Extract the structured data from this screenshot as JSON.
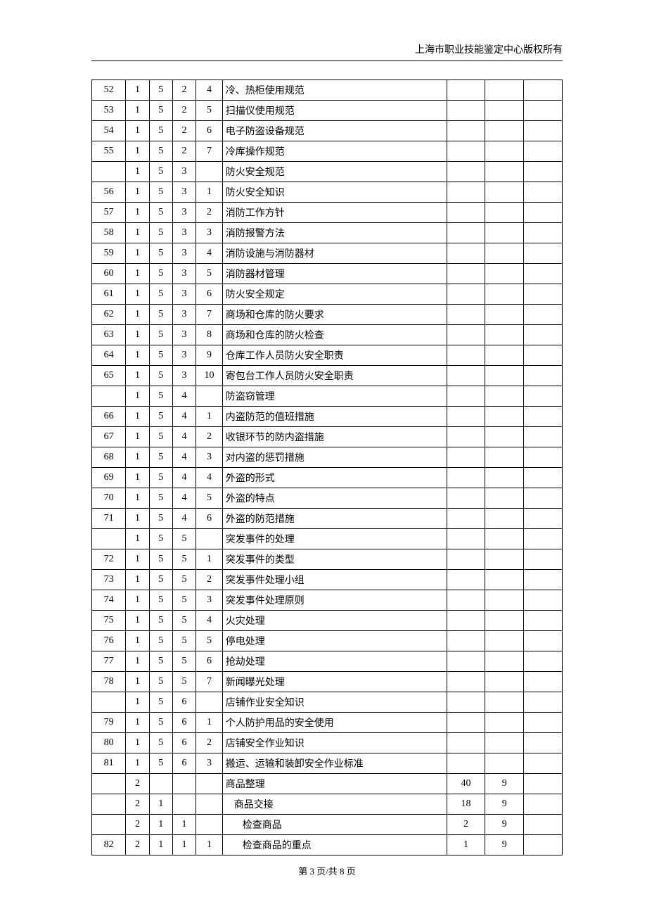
{
  "header": {
    "copyright": "上海市职业技能鉴定中心版权所有"
  },
  "footer": {
    "pager": "第 3 页/共 8 页"
  },
  "table": {
    "rows": [
      {
        "c0": "52",
        "c1": "1",
        "c2": "5",
        "c3": "2",
        "c4": "4",
        "c5": "冷、热柜使用规范",
        "c6": "",
        "c7": "",
        "c8": "",
        "indent": 0
      },
      {
        "c0": "53",
        "c1": "1",
        "c2": "5",
        "c3": "2",
        "c4": "5",
        "c5": "扫描仪使用规范",
        "c6": "",
        "c7": "",
        "c8": "",
        "indent": 0
      },
      {
        "c0": "54",
        "c1": "1",
        "c2": "5",
        "c3": "2",
        "c4": "6",
        "c5": "电子防盗设备规范",
        "c6": "",
        "c7": "",
        "c8": "",
        "indent": 0
      },
      {
        "c0": "55",
        "c1": "1",
        "c2": "5",
        "c3": "2",
        "c4": "7",
        "c5": "冷库操作规范",
        "c6": "",
        "c7": "",
        "c8": "",
        "indent": 0
      },
      {
        "c0": "",
        "c1": "1",
        "c2": "5",
        "c3": "3",
        "c4": "",
        "c5": "防火安全规范",
        "c6": "",
        "c7": "",
        "c8": "",
        "indent": 0
      },
      {
        "c0": "56",
        "c1": "1",
        "c2": "5",
        "c3": "3",
        "c4": "1",
        "c5": "防火安全知识",
        "c6": "",
        "c7": "",
        "c8": "",
        "indent": 0
      },
      {
        "c0": "57",
        "c1": "1",
        "c2": "5",
        "c3": "3",
        "c4": "2",
        "c5": "消防工作方针",
        "c6": "",
        "c7": "",
        "c8": "",
        "indent": 0
      },
      {
        "c0": "58",
        "c1": "1",
        "c2": "5",
        "c3": "3",
        "c4": "3",
        "c5": "消防报警方法",
        "c6": "",
        "c7": "",
        "c8": "",
        "indent": 0
      },
      {
        "c0": "59",
        "c1": "1",
        "c2": "5",
        "c3": "3",
        "c4": "4",
        "c5": "消防设施与消防器材",
        "c6": "",
        "c7": "",
        "c8": "",
        "indent": 0
      },
      {
        "c0": "60",
        "c1": "1",
        "c2": "5",
        "c3": "3",
        "c4": "5",
        "c5": "消防器材管理",
        "c6": "",
        "c7": "",
        "c8": "",
        "indent": 0
      },
      {
        "c0": "61",
        "c1": "1",
        "c2": "5",
        "c3": "3",
        "c4": "6",
        "c5": "防火安全规定",
        "c6": "",
        "c7": "",
        "c8": "",
        "indent": 0
      },
      {
        "c0": "62",
        "c1": "1",
        "c2": "5",
        "c3": "3",
        "c4": "7",
        "c5": "商场和仓库的防火要求",
        "c6": "",
        "c7": "",
        "c8": "",
        "indent": 0
      },
      {
        "c0": "63",
        "c1": "1",
        "c2": "5",
        "c3": "3",
        "c4": "8",
        "c5": "商场和仓库的防火检查",
        "c6": "",
        "c7": "",
        "c8": "",
        "indent": 0
      },
      {
        "c0": "64",
        "c1": "1",
        "c2": "5",
        "c3": "3",
        "c4": "9",
        "c5": "仓库工作人员防火安全职责",
        "c6": "",
        "c7": "",
        "c8": "",
        "indent": 0
      },
      {
        "c0": "65",
        "c1": "1",
        "c2": "5",
        "c3": "3",
        "c4": "10",
        "c5": "寄包台工作人员防火安全职责",
        "c6": "",
        "c7": "",
        "c8": "",
        "indent": 0
      },
      {
        "c0": "",
        "c1": "1",
        "c2": "5",
        "c3": "4",
        "c4": "",
        "c5": "防盗窃管理",
        "c6": "",
        "c7": "",
        "c8": "",
        "indent": 0
      },
      {
        "c0": "66",
        "c1": "1",
        "c2": "5",
        "c3": "4",
        "c4": "1",
        "c5": "内盗防范的值班措施",
        "c6": "",
        "c7": "",
        "c8": "",
        "indent": 0
      },
      {
        "c0": "67",
        "c1": "1",
        "c2": "5",
        "c3": "4",
        "c4": "2",
        "c5": "收银环节的防内盗措施",
        "c6": "",
        "c7": "",
        "c8": "",
        "indent": 0
      },
      {
        "c0": "68",
        "c1": "1",
        "c2": "5",
        "c3": "4",
        "c4": "3",
        "c5": "对内盗的惩罚措施",
        "c6": "",
        "c7": "",
        "c8": "",
        "indent": 0
      },
      {
        "c0": "69",
        "c1": "1",
        "c2": "5",
        "c3": "4",
        "c4": "4",
        "c5": "外盗的形式",
        "c6": "",
        "c7": "",
        "c8": "",
        "indent": 0
      },
      {
        "c0": "70",
        "c1": "1",
        "c2": "5",
        "c3": "4",
        "c4": "5",
        "c5": "外盗的特点",
        "c6": "",
        "c7": "",
        "c8": "",
        "indent": 0
      },
      {
        "c0": "71",
        "c1": "1",
        "c2": "5",
        "c3": "4",
        "c4": "6",
        "c5": "外盗的防范措施",
        "c6": "",
        "c7": "",
        "c8": "",
        "indent": 0
      },
      {
        "c0": "",
        "c1": "1",
        "c2": "5",
        "c3": "5",
        "c4": "",
        "c5": "突发事件的处理",
        "c6": "",
        "c7": "",
        "c8": "",
        "indent": 0
      },
      {
        "c0": "72",
        "c1": "1",
        "c2": "5",
        "c3": "5",
        "c4": "1",
        "c5": "突发事件的类型",
        "c6": "",
        "c7": "",
        "c8": "",
        "indent": 0
      },
      {
        "c0": "73",
        "c1": "1",
        "c2": "5",
        "c3": "5",
        "c4": "2",
        "c5": "突发事件处理小组",
        "c6": "",
        "c7": "",
        "c8": "",
        "indent": 0
      },
      {
        "c0": "74",
        "c1": "1",
        "c2": "5",
        "c3": "5",
        "c4": "3",
        "c5": "突发事件处理原则",
        "c6": "",
        "c7": "",
        "c8": "",
        "indent": 0
      },
      {
        "c0": "75",
        "c1": "1",
        "c2": "5",
        "c3": "5",
        "c4": "4",
        "c5": "火灾处理",
        "c6": "",
        "c7": "",
        "c8": "",
        "indent": 0
      },
      {
        "c0": "76",
        "c1": "1",
        "c2": "5",
        "c3": "5",
        "c4": "5",
        "c5": "停电处理",
        "c6": "",
        "c7": "",
        "c8": "",
        "indent": 0
      },
      {
        "c0": "77",
        "c1": "1",
        "c2": "5",
        "c3": "5",
        "c4": "6",
        "c5": "抢劫处理",
        "c6": "",
        "c7": "",
        "c8": "",
        "indent": 0
      },
      {
        "c0": "78",
        "c1": "1",
        "c2": "5",
        "c3": "5",
        "c4": "7",
        "c5": "新闻曝光处理",
        "c6": "",
        "c7": "",
        "c8": "",
        "indent": 0
      },
      {
        "c0": "",
        "c1": "1",
        "c2": "5",
        "c3": "6",
        "c4": "",
        "c5": "店铺作业安全知识",
        "c6": "",
        "c7": "",
        "c8": "",
        "indent": 0
      },
      {
        "c0": "79",
        "c1": "1",
        "c2": "5",
        "c3": "6",
        "c4": "1",
        "c5": "个人防护用品的安全使用",
        "c6": "",
        "c7": "",
        "c8": "",
        "indent": 0
      },
      {
        "c0": "80",
        "c1": "1",
        "c2": "5",
        "c3": "6",
        "c4": "2",
        "c5": "店铺安全作业知识",
        "c6": "",
        "c7": "",
        "c8": "",
        "indent": 0
      },
      {
        "c0": "81",
        "c1": "1",
        "c2": "5",
        "c3": "6",
        "c4": "3",
        "c5": "搬运、运输和装卸安全作业标准",
        "c6": "",
        "c7": "",
        "c8": "",
        "indent": 0
      },
      {
        "c0": "",
        "c1": "2",
        "c2": "",
        "c3": "",
        "c4": "",
        "c5": "商品整理",
        "c6": "40",
        "c7": "9",
        "c8": "",
        "indent": 0
      },
      {
        "c0": "",
        "c1": "2",
        "c2": "1",
        "c3": "",
        "c4": "",
        "c5": "商品交接",
        "c6": "18",
        "c7": "9",
        "c8": "",
        "indent": 1
      },
      {
        "c0": "",
        "c1": "2",
        "c2": "1",
        "c3": "1",
        "c4": "",
        "c5": "检查商品",
        "c6": "2",
        "c7": "9",
        "c8": "",
        "indent": 2
      },
      {
        "c0": "82",
        "c1": "2",
        "c2": "1",
        "c3": "1",
        "c4": "1",
        "c5": "检查商品的重点",
        "c6": "1",
        "c7": "9",
        "c8": "",
        "indent": 2
      }
    ]
  }
}
